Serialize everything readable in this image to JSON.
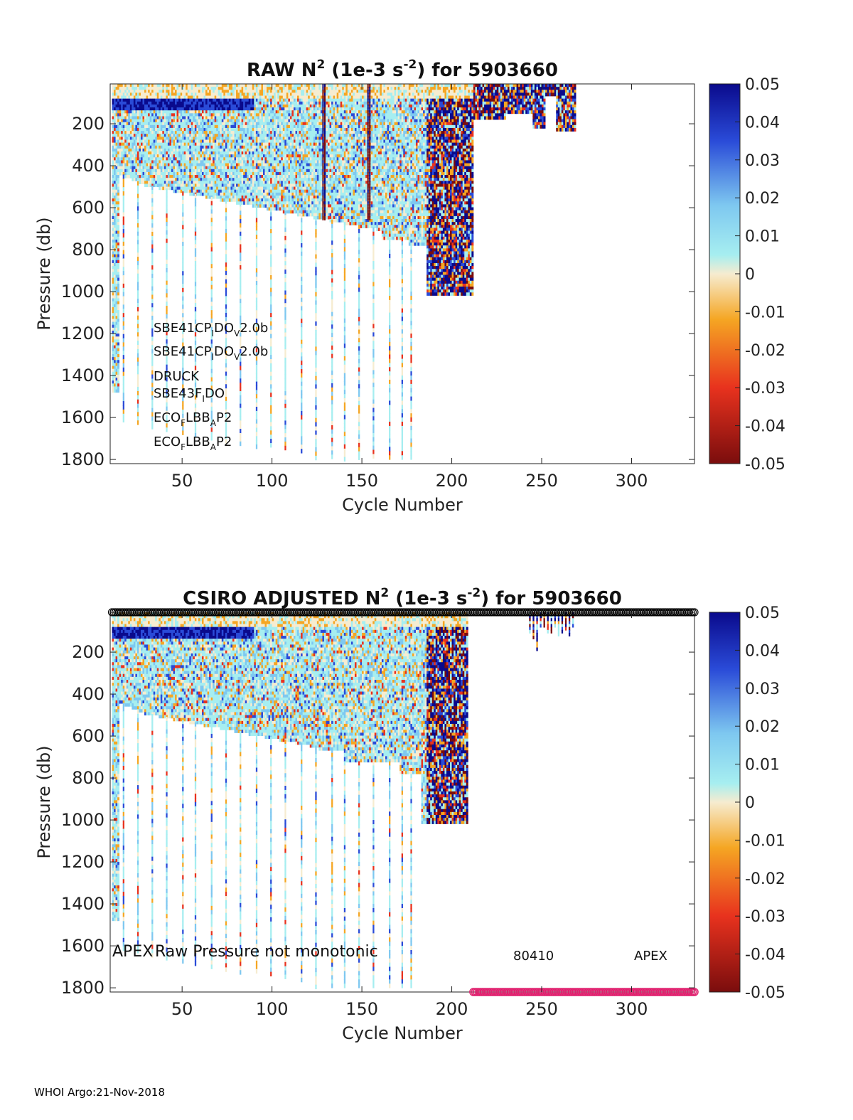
{
  "footer": "WHOI Argo:21-Nov-2018",
  "colorbar": {
    "ticks": [
      "0.05",
      "0.04",
      "0.03",
      "0.02",
      "0.01",
      "0",
      "-0.01",
      "-0.02",
      "-0.03",
      "-0.04",
      "-0.05"
    ],
    "range": [
      -0.05,
      0.05
    ],
    "colors": {
      "dark_blue": "#0a0a8c",
      "blue": "#2a4bd8",
      "light_blue": "#7ec8f0",
      "cyan": "#a6eef0",
      "cream": "#f6ecd0",
      "orange": "#f5a623",
      "red": "#e8321e",
      "dark_red": "#7a0d0d"
    }
  },
  "chart_data": [
    {
      "type": "heatmap",
      "title_main": "RAW N",
      "title_sup1": "2",
      "title_mid": " (1e-3 s",
      "title_sup2": "-2",
      "title_end": ") for 5903660",
      "xlabel": "Cycle Number",
      "ylabel": "Pressure (db)",
      "xlim": [
        10,
        335
      ],
      "ylim": [
        10,
        1820
      ],
      "xticks": [
        "50",
        "100",
        "150",
        "200",
        "250",
        "300"
      ],
      "yticks": [
        "200",
        "400",
        "600",
        "800",
        "1000",
        "1200",
        "1400",
        "1600",
        "1800"
      ],
      "sensor_labels": [
        [
          "SBE41CP",
          "I",
          "DO",
          "V",
          "2.0b"
        ],
        [
          "SBE41CP",
          "I",
          "DO",
          "V",
          "2.0b"
        ],
        [
          "DRUCK"
        ],
        [
          "SBE43F",
          "I",
          "DO"
        ],
        [
          "ECO",
          "F",
          "LBB",
          "A",
          "P2"
        ],
        [
          "ECO",
          "F",
          "LBB",
          "A",
          "P2"
        ]
      ]
    },
    {
      "type": "heatmap",
      "title_main": "CSIRO  ADJUSTED N",
      "title_sup1": "2",
      "title_mid": " (1e-3 s",
      "title_sup2": "-2",
      "title_end": ") for 5903660",
      "xlabel": "Cycle Number",
      "ylabel": "Pressure (db)",
      "xlim": [
        10,
        335
      ],
      "ylim": [
        10,
        1820
      ],
      "xticks": [
        "50",
        "100",
        "150",
        "200",
        "250",
        "300"
      ],
      "yticks": [
        "200",
        "400",
        "600",
        "800",
        "1000",
        "1200",
        "1400",
        "1600",
        "1800"
      ],
      "annotations": [
        "APEX",
        "Raw Pressure not monotonic",
        "80410",
        "APEX"
      ],
      "qc_markers": {
        "top_range": [
          11,
          335
        ],
        "bottom_range": [
          212,
          335
        ],
        "top_color": "#000000",
        "bottom_color": "#e0206e"
      }
    }
  ]
}
